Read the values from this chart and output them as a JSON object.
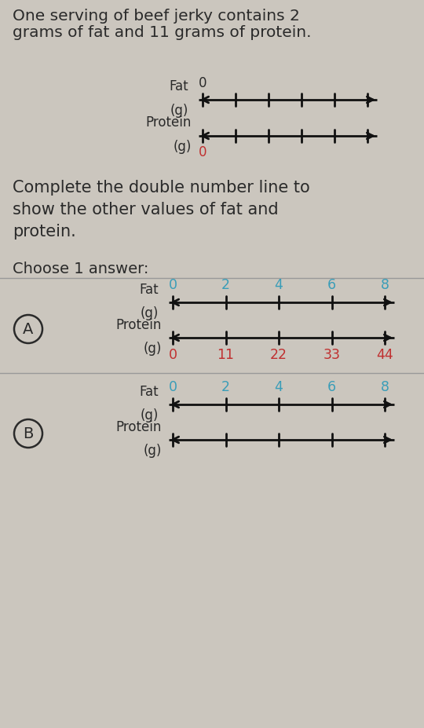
{
  "bg_color": "#cbc6be",
  "white_area_color": "#dedad4",
  "text_color": "#2a2a2a",
  "title_text1": "One serving of beef jerky contains 2",
  "title_text2": "grams of fat and 11 grams of protein.",
  "title_fontsize": 14.5,
  "instruction_text1": "Complete the double number line to",
  "instruction_text2": "show the other values of fat and",
  "instruction_text3": "protein.",
  "instruction_fontsize": 15,
  "choose_text": "Choose 1 answer:",
  "choose_fontsize": 14,
  "fat_color": "#3a9db8",
  "protein_color": "#c03030",
  "line_color": "#111111",
  "option_A_fat_labels": [
    "0",
    "2",
    "4",
    "6",
    "8"
  ],
  "option_A_protein_labels": [
    "0",
    "11",
    "22",
    "33",
    "44"
  ],
  "option_B_fat_labels": [
    "0",
    "2",
    "4",
    "6",
    "8"
  ],
  "option_B_protein_labels": []
}
